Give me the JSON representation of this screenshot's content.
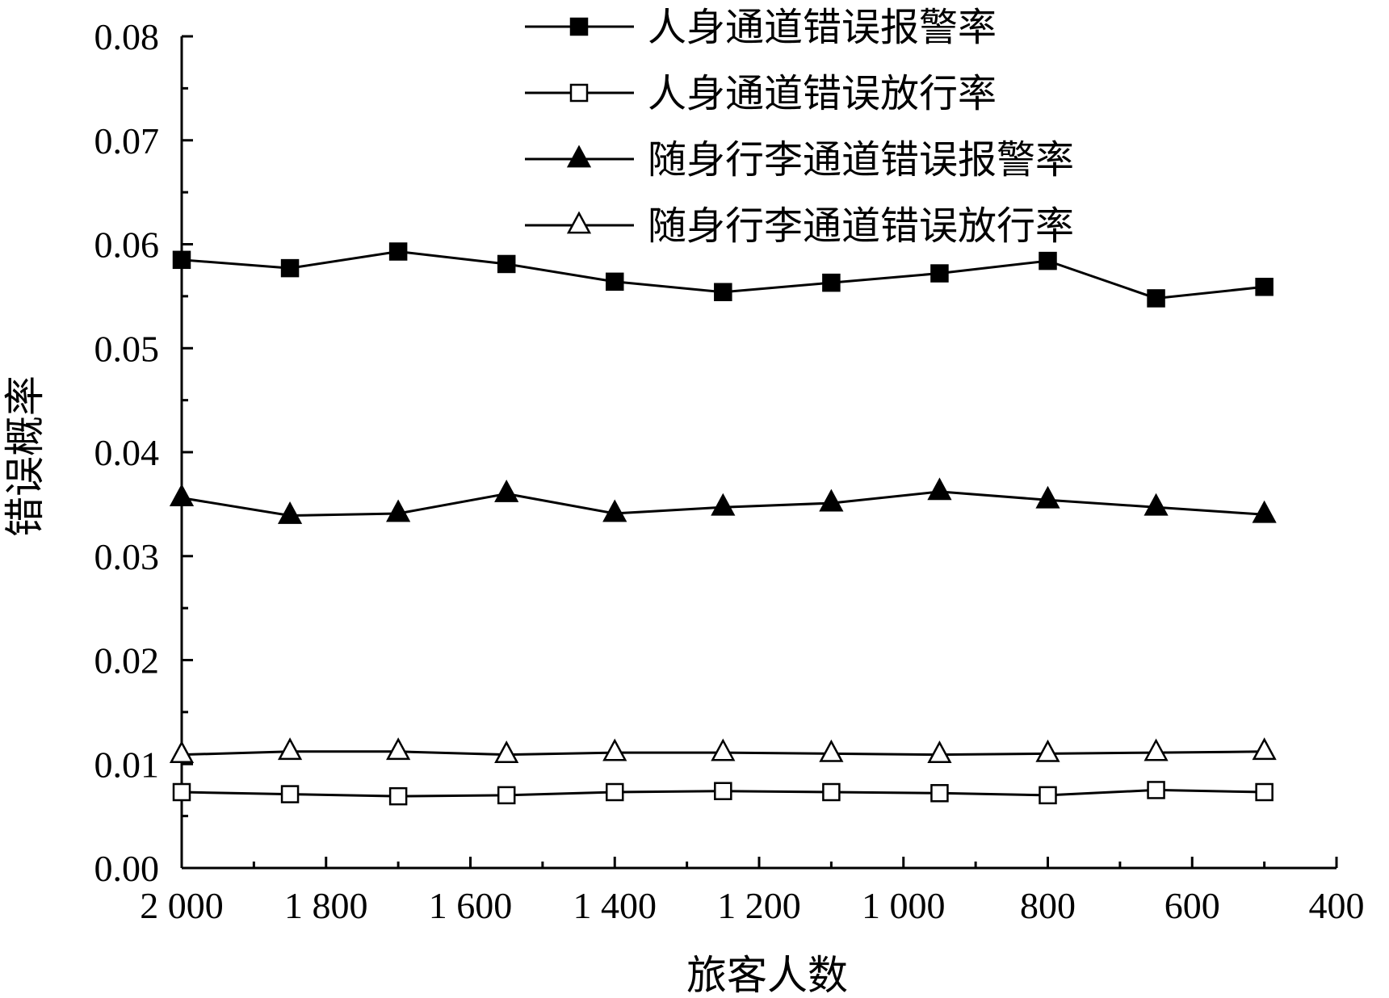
{
  "chart_data": {
    "type": "line",
    "xlabel": "旅客人数",
    "ylabel": "错误概率",
    "xlim": [
      2000,
      400
    ],
    "ylim": [
      0.0,
      0.08
    ],
    "x_ticks": [
      "2 000",
      "1 800",
      "1 600",
      "1 400",
      "1 200",
      "1 000",
      "800",
      "600",
      "400"
    ],
    "y_ticks": [
      "0.00",
      "0.01",
      "0.02",
      "0.03",
      "0.04",
      "0.05",
      "0.06",
      "0.07",
      "0.08"
    ],
    "x": [
      2000,
      1850,
      1700,
      1550,
      1400,
      1250,
      1100,
      950,
      800,
      650,
      500
    ],
    "series": [
      {
        "name": "人身通道错误报警率",
        "marker": "square-filled",
        "values": [
          0.0585,
          0.0577,
          0.0593,
          0.0581,
          0.0564,
          0.0554,
          0.0563,
          0.0572,
          0.0584,
          0.0548,
          0.0559
        ]
      },
      {
        "name": "人身通道错误放行率",
        "marker": "square-open",
        "values": [
          0.0073,
          0.0071,
          0.0069,
          0.007,
          0.0073,
          0.0074,
          0.0073,
          0.0072,
          0.007,
          0.0075,
          0.0073
        ]
      },
      {
        "name": "随身行李通道错误报警率",
        "marker": "triangle-filled",
        "values": [
          0.0356,
          0.0339,
          0.0341,
          0.036,
          0.0341,
          0.0347,
          0.0351,
          0.0362,
          0.0354,
          0.0347,
          0.034
        ]
      },
      {
        "name": "随身行李通道错误放行率",
        "marker": "triangle-open",
        "values": [
          0.0109,
          0.0112,
          0.0112,
          0.0109,
          0.0111,
          0.0111,
          0.011,
          0.0109,
          0.011,
          0.0111,
          0.0112
        ]
      }
    ],
    "legend_position": "top-center",
    "grid": false,
    "colors": {
      "line": "#000000",
      "background": "#ffffff"
    }
  }
}
